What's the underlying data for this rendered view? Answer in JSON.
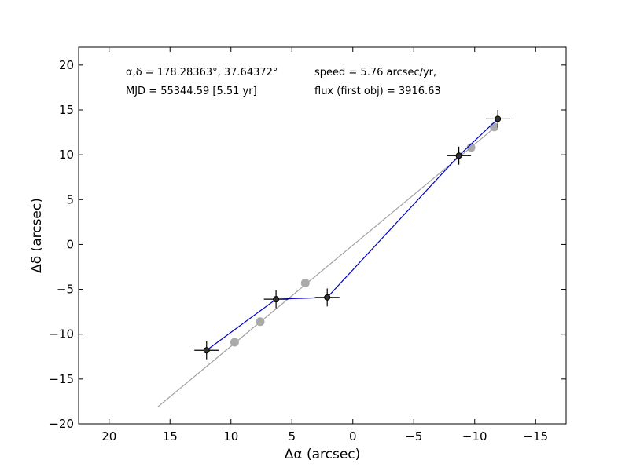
{
  "chart_data": {
    "type": "scatter",
    "title": "",
    "xlabel": "Δα (arcsec)",
    "ylabel": "Δδ (arcsec)",
    "xlim": [
      22.5,
      -17.5
    ],
    "ylim": [
      -20,
      22
    ],
    "x_ticks": [
      20,
      15,
      10,
      5,
      0,
      -5,
      -10,
      -15
    ],
    "x_tick_labels": [
      "20",
      "15",
      "10",
      "5",
      "0",
      "−5",
      "−10",
      "−15"
    ],
    "y_ticks": [
      20,
      15,
      10,
      5,
      0,
      -5,
      -10,
      -15,
      -20
    ],
    "y_tick_labels": [
      "20",
      "15",
      "10",
      "5",
      "0",
      "−5",
      "−10",
      "−15",
      "−20"
    ],
    "grid": false,
    "annotations": {
      "radec": "α,δ = 178.28363°, 37.64372°",
      "mjd": "MJD = 55344.59 [5.51 yr]",
      "speed": "speed = 5.76 arcsec/yr,",
      "flux": "flux (first obj) = 3916.63"
    },
    "series": [
      {
        "role": "fit-line",
        "color": "#a0a0a0",
        "x": [
          16.0,
          -11.8
        ],
        "y": [
          -18.1,
          13.2
        ]
      },
      {
        "role": "model-positions",
        "color": "#aaaaaa",
        "x": [
          9.7,
          7.6,
          3.9,
          -9.7,
          -11.6
        ],
        "y": [
          -10.9,
          -8.6,
          -4.3,
          10.8,
          13.1
        ]
      },
      {
        "role": "path",
        "color": "#0000cc",
        "x": [
          12.0,
          6.3,
          2.1,
          -8.7,
          -11.9
        ],
        "y": [
          -11.8,
          -6.1,
          -5.9,
          9.9,
          14.0
        ]
      },
      {
        "role": "observed-points",
        "color": "#333333",
        "x": [
          12.0,
          6.3,
          2.1,
          -8.7,
          -11.9
        ],
        "y": [
          -11.8,
          -6.1,
          -5.9,
          9.9,
          14.0
        ],
        "xerr": 1.0,
        "yerr": 1.0
      }
    ]
  }
}
